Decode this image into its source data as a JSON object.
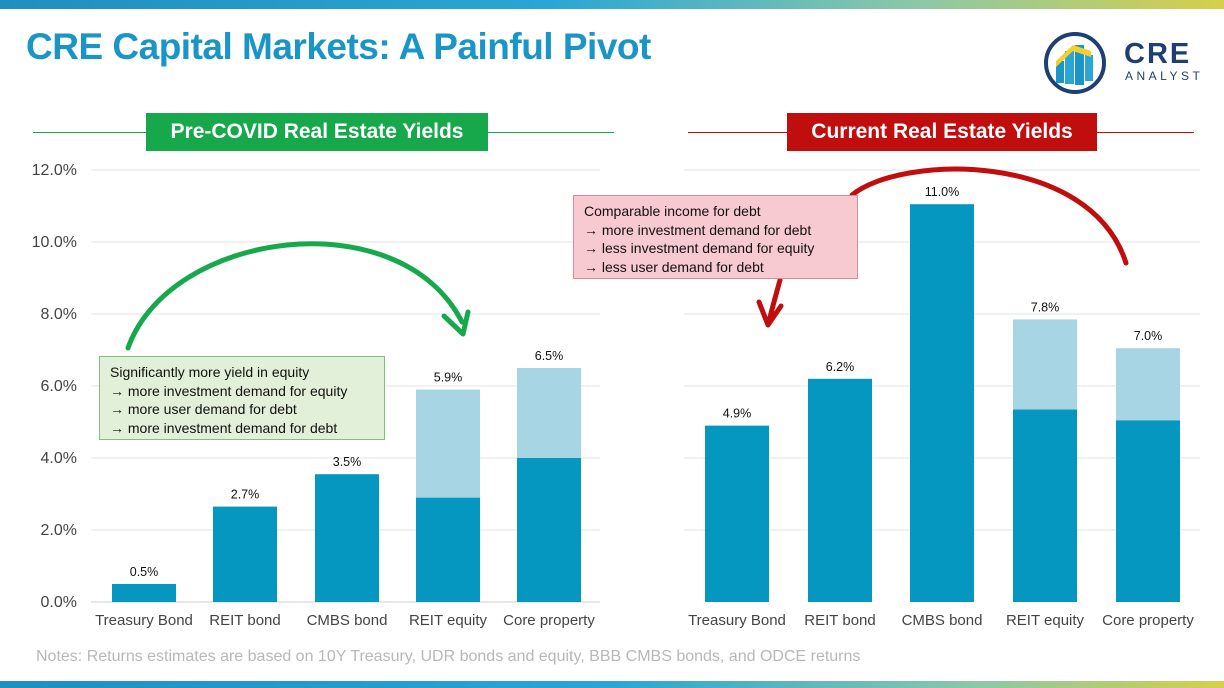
{
  "title": "CRE Capital Markets: A Painful Pivot",
  "logo": {
    "word": "CRE",
    "sub": "ANALYST"
  },
  "notes": "Notes: Returns estimates are based on 10Y Treasury, UDR bonds and equity, BBB CMBS bonds, and ODCE returns",
  "colors": {
    "dark_bar": "#0597bf",
    "light_bar": "#a8d5e3",
    "green": "#16a84a",
    "red": "#c00d0d"
  },
  "y_axis": {
    "ticks": [
      "0.0%",
      "2.0%",
      "4.0%",
      "6.0%",
      "8.0%",
      "10.0%",
      "12.0%"
    ]
  },
  "panels": {
    "left": {
      "heading": "Pre-COVID Real Estate Yields",
      "callout": {
        "lines": [
          "Significantly more yield in equity",
          "→ more investment demand for equity",
          "→ more user demand for debt",
          "→ more investment demand for debt"
        ]
      }
    },
    "right": {
      "heading": "Current Real Estate Yields",
      "callout": {
        "lines": [
          "Comparable income for debt",
          "→ more investment demand for debt",
          "→ less investment demand for equity",
          "→ less user demand for debt"
        ]
      }
    }
  },
  "chart_data": [
    {
      "type": "bar",
      "stacked": true,
      "title": "Pre-COVID Real Estate Yields",
      "categories": [
        "Treasury Bond",
        "REIT bond",
        "CMBS bond",
        "REIT equity",
        "Core property"
      ],
      "series": [
        {
          "values": [
            0.5,
            2.65,
            3.55,
            2.9,
            4.0
          ]
        },
        {
          "values": [
            0,
            0,
            0,
            3.0,
            2.5
          ]
        }
      ],
      "totals": [
        0.5,
        2.65,
        3.55,
        5.9,
        6.5
      ],
      "data_labels": [
        "0.5%",
        "2.7%",
        "3.5%",
        "5.9%",
        "6.5%"
      ],
      "ylim": [
        0,
        12
      ],
      "grid": true
    },
    {
      "type": "bar",
      "stacked": true,
      "title": "Current Real Estate Yields",
      "categories": [
        "Treasury Bond",
        "REIT bond",
        "CMBS bond",
        "REIT equity",
        "Core property"
      ],
      "series": [
        {
          "values": [
            4.9,
            6.2,
            11.05,
            5.35,
            5.05
          ]
        },
        {
          "values": [
            0,
            0,
            0,
            2.5,
            2.0
          ]
        }
      ],
      "totals": [
        4.9,
        6.2,
        11.05,
        7.85,
        7.05
      ],
      "data_labels": [
        "4.9%",
        "6.2%",
        "11.0%",
        "7.8%",
        "7.0%"
      ],
      "ylim": [
        0,
        12
      ],
      "grid": true
    }
  ]
}
